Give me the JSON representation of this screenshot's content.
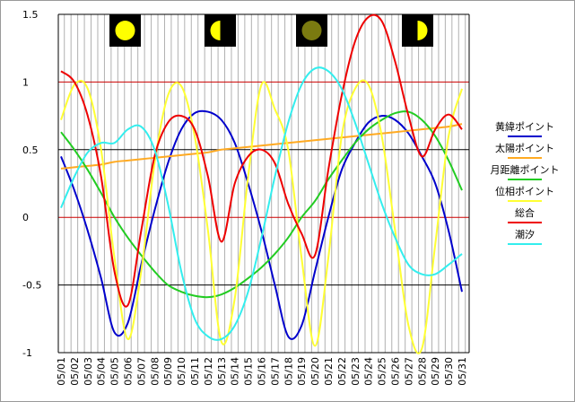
{
  "chart_data": {
    "type": "line",
    "categories": [
      "05/01",
      "05/02",
      "05/03",
      "05/04",
      "05/05",
      "05/06",
      "05/07",
      "05/08",
      "05/09",
      "05/10",
      "05/11",
      "05/12",
      "05/13",
      "05/14",
      "05/15",
      "05/16",
      "05/17",
      "05/18",
      "05/19",
      "05/20",
      "05/21",
      "05/22",
      "05/23",
      "05/24",
      "05/25",
      "05/26",
      "05/27",
      "05/28",
      "05/29",
      "05/30",
      "05/31"
    ],
    "series": [
      {
        "name": "黄緯ポイント",
        "color": "#0000cc",
        "values": [
          0.45,
          0.2,
          -0.1,
          -0.45,
          -0.85,
          -0.78,
          -0.35,
          0.05,
          0.4,
          0.65,
          0.77,
          0.78,
          0.72,
          0.55,
          0.25,
          -0.1,
          -0.5,
          -0.88,
          -0.8,
          -0.4,
          0,
          0.35,
          0.55,
          0.7,
          0.75,
          0.72,
          0.62,
          0.45,
          0.25,
          -0.1,
          -0.55
        ]
      },
      {
        "name": "太陽ポイント",
        "color": "#ffaa22",
        "values": [
          0.36,
          0.37,
          0.38,
          0.39,
          0.41,
          0.42,
          0.43,
          0.44,
          0.45,
          0.46,
          0.47,
          0.48,
          0.5,
          0.51,
          0.52,
          0.53,
          0.54,
          0.55,
          0.56,
          0.57,
          0.58,
          0.59,
          0.6,
          0.61,
          0.62,
          0.63,
          0.64,
          0.65,
          0.66,
          0.67,
          0.69
        ]
      },
      {
        "name": "月距離ポイント",
        "color": "#22cc22",
        "values": [
          0.63,
          0.5,
          0.35,
          0.18,
          0,
          -0.15,
          -0.28,
          -0.4,
          -0.5,
          -0.55,
          -0.58,
          -0.59,
          -0.57,
          -0.52,
          -0.45,
          -0.37,
          -0.27,
          -0.15,
          0,
          0.12,
          0.28,
          0.42,
          0.55,
          0.65,
          0.72,
          0.77,
          0.78,
          0.72,
          0.6,
          0.42,
          0.2
        ]
      },
      {
        "name": "位相ポイント",
        "color": "#ffff33",
        "values": [
          0.72,
          0.98,
          0.95,
          0.5,
          -0.3,
          -0.9,
          -0.4,
          0.4,
          0.9,
          0.97,
          0.6,
          -0.1,
          -0.92,
          -0.6,
          0.3,
          0.98,
          0.8,
          0.5,
          -0.3,
          -0.95,
          -0.3,
          0.6,
          0.95,
          0.98,
          0.6,
          -0.1,
          -0.8,
          -0.97,
          -0.2,
          0.6,
          0.95
        ]
      },
      {
        "name": "総合",
        "color": "#ee0000",
        "values": [
          1.08,
          1.0,
          0.75,
          0.3,
          -0.4,
          -0.65,
          -0.1,
          0.45,
          0.7,
          0.75,
          0.65,
          0.3,
          -0.18,
          0.25,
          0.45,
          0.5,
          0.4,
          0.1,
          -0.12,
          -0.28,
          0.35,
          0.9,
          1.3,
          1.48,
          1.45,
          1.15,
          0.75,
          0.45,
          0.65,
          0.76,
          0.65
        ]
      },
      {
        "name": "潮汐",
        "color": "#33eeee",
        "values": [
          0.07,
          0.3,
          0.48,
          0.55,
          0.55,
          0.65,
          0.67,
          0.5,
          0.1,
          -0.4,
          -0.75,
          -0.88,
          -0.9,
          -0.8,
          -0.55,
          -0.15,
          0.3,
          0.7,
          0.98,
          1.1,
          1.08,
          0.95,
          0.7,
          0.4,
          0.1,
          -0.15,
          -0.35,
          -0.42,
          -0.42,
          -0.35,
          -0.27
        ]
      }
    ],
    "ylim": [
      -1,
      1.5
    ],
    "yticks": [
      -1,
      -0.5,
      0,
      0.5,
      1,
      1.5
    ],
    "grid": true,
    "grid_colors": [
      "#000000",
      "#000000",
      "#cc0000",
      "#000000",
      "#cc0000",
      "#000000"
    ],
    "legend": "right"
  }
}
